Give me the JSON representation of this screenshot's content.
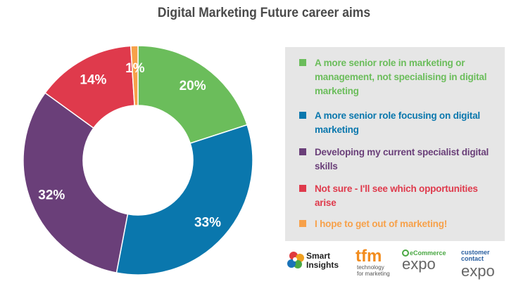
{
  "chart_data": {
    "type": "pie",
    "title": "Digital Marketing Future career aims",
    "slices": [
      {
        "label": "A more senior role in marketing or management, not specialising in digital marketing",
        "value": 20,
        "display": "20%",
        "color": "#6bbd5b"
      },
      {
        "label": "A more senior role focusing on digital marketing",
        "value": 33,
        "display": "33%",
        "color": "#0a77ad"
      },
      {
        "label": "Developing my current specialist digital skills",
        "value": 32,
        "display": "32%",
        "color": "#6a3f79"
      },
      {
        "label": "Not sure - I'll see which opportunities arise",
        "value": 14,
        "display": "14%",
        "color": "#df3a4c"
      },
      {
        "label": "I hope to get out of marketing!",
        "value": 1,
        "display": "1%",
        "color": "#f7a14a"
      }
    ],
    "legend_position": "right",
    "donut": true
  },
  "logos": {
    "smart_insights": {
      "line1": "Smart",
      "line2": "Insights"
    },
    "tfm": {
      "mark": "tfm",
      "line1": "technology",
      "line2": "for marketing"
    },
    "ecommerce": {
      "top": "eCommerce",
      "word": "expo"
    },
    "customer_contact": {
      "line1": "customer",
      "line2": "contact",
      "word": "expo"
    }
  }
}
